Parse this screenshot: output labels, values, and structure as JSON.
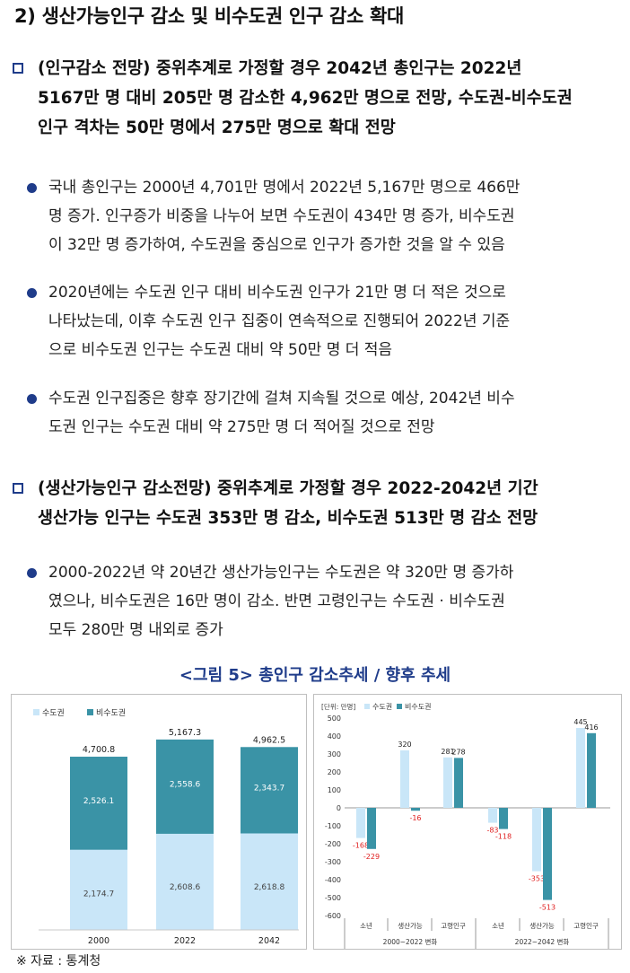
{
  "section_title": "2) 생산가능인구 감소 및 비수도권 인구 감소 확대",
  "item1": {
    "lines": [
      "(인구감소 전망) 중위추계로 가정할 경우 2042년 총인구는 2022년",
      "5167만 명 대비 205만 명 감소한 4,962만 명으로 전망, 수도권-비수도권",
      "인구 격차는 50만 명에서 275만 명으로 확대 전망"
    ],
    "bullets": [
      [
        "국내 총인구는 2000년 4,701만 명에서 2022년 5,167만 명으로 466만",
        "명 증가. 인구증가 비중을 나누어 보면 수도권이 434만 명 증가, 비수도권",
        "이 32만 명 증가하여, 수도권을 중심으로 인구가 증가한 것을 알 수 있음"
      ],
      [
        "2020년에는 수도권 인구 대비 비수도권 인구가 21만 명 더 적은 것으로",
        "나타났는데, 이후 수도권 인구 집중이 연속적으로 진행되어 2022년 기준",
        "으로 비수도권 인구는 수도권 대비 약 50만 명 더 적음"
      ],
      [
        "수도권 인구집중은 향후 장기간에 걸쳐 지속될 것으로 예상, 2042년 비수",
        "도권 인구는 수도권 대비 약 275만 명 더 적어질 것으로 전망"
      ]
    ]
  },
  "item2": {
    "lines": [
      "(생산가능인구 감소전망) 중위추계로 가정할 경우 2022-2042년 기간",
      "생산가능 인구는 수도권 353만 명 감소, 비수도권 513만 명 감소 전망"
    ],
    "bullets": [
      [
        "2000-2022년 약 20년간 생산가능인구는 수도권은 약 320만 명 증가하",
        "였으나, 비수도권은 16만 명이 감소. 반면 고령인구는 수도권 · 비수도권",
        "모두 280만 명 내외로 증가"
      ]
    ]
  },
  "figure_caption": "<그림 5> 총인구 감소추세 / 향후 추세",
  "source": "※ 자료 : 통계청",
  "colors": {
    "capital": "#c9e6f8",
    "noncapital": "#3a93a6",
    "accent": "#1f3c8a",
    "negative": "#e02020"
  },
  "chart_data": [
    {
      "type": "bar",
      "stacked": true,
      "categories": [
        "2000",
        "2022",
        "2042"
      ],
      "series": [
        {
          "name": "수도권",
          "values": [
            2174.7,
            2608.6,
            2618.8
          ]
        },
        {
          "name": "비수도권",
          "values": [
            2526.1,
            2558.6,
            2343.7
          ]
        }
      ],
      "totals": [
        4700.8,
        5167.3,
        4962.5
      ],
      "value_labels": {
        "수도권": [
          "2,174.7",
          "2,608.6",
          "2,618.8"
        ],
        "비수도권": [
          "2,526.1",
          "2,558.6",
          "2,343.7"
        ],
        "totals": [
          "4,700.8",
          "5,167.3",
          "4,962.5"
        ]
      },
      "legend": [
        "수도권",
        "비수도권"
      ],
      "legend_position": "top-left"
    },
    {
      "type": "bar",
      "unit_label": "[단위: 만명]",
      "legend": [
        "수도권",
        "비수도권"
      ],
      "legend_position": "top-left",
      "ylim": [
        -600,
        500
      ],
      "yticks": [
        500,
        400,
        300,
        200,
        100,
        0,
        -100,
        -200,
        -300,
        -400,
        -500,
        -600
      ],
      "categories": [
        "소년",
        "생산가능",
        "고령인구",
        "소년",
        "생산가능",
        "고령인구"
      ],
      "groups": [
        "2000~2022 변화",
        "2022~2042 변화"
      ],
      "series": [
        {
          "name": "수도권",
          "values": [
            -168,
            320,
            281,
            -83,
            -353,
            445
          ]
        },
        {
          "name": "비수도권",
          "values": [
            -229,
            -16,
            278,
            -118,
            -513,
            416
          ]
        }
      ]
    }
  ]
}
